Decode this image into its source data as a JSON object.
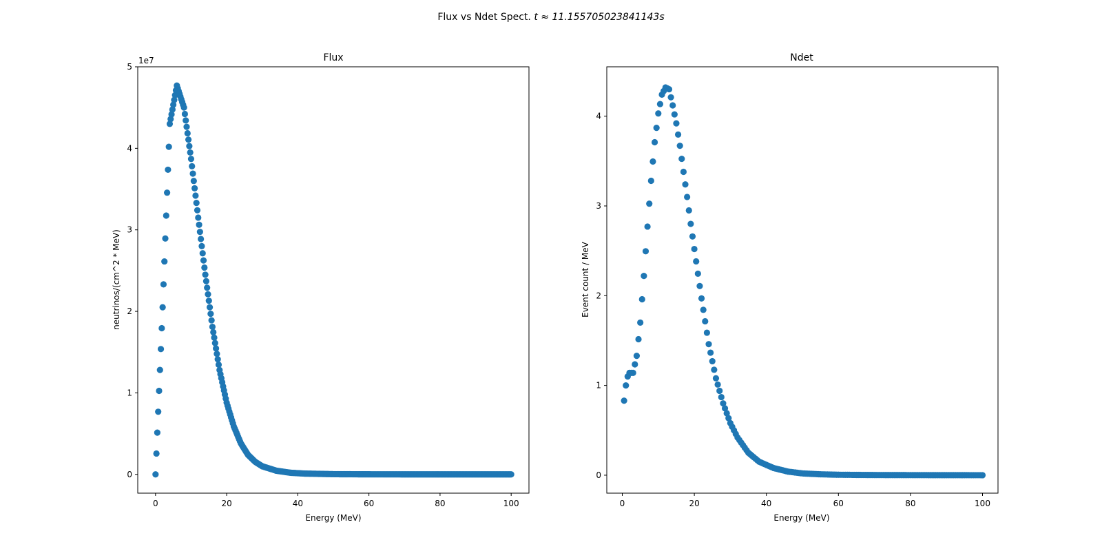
{
  "figure": {
    "suptitle_prefix": "Flux vs Ndet Spect. ",
    "suptitle_time": "t ≈ 11.155705023841143s",
    "marker_color": "#1f77b4"
  },
  "chart_data": [
    {
      "id": "flux",
      "type": "scatter",
      "title": "Flux",
      "xlabel": "Energy (MeV)",
      "ylabel": "neutrinos/(cm^2 * MeV)",
      "offset_label": "1e7",
      "xlim": [
        -5,
        105
      ],
      "ylim": [
        -2.3,
        50
      ],
      "xticks": [
        0,
        20,
        40,
        60,
        80,
        100
      ],
      "xtick_labels": [
        "0",
        "20",
        "40",
        "60",
        "80",
        "100"
      ],
      "yticks": [
        0,
        10,
        20,
        30,
        40,
        50
      ],
      "ytick_labels": [
        "0",
        "1",
        "2",
        "3",
        "4",
        "5"
      ],
      "grid": false,
      "color": "#1f77b4",
      "units_note": "y values in units of 1e7",
      "x": [
        0,
        2,
        4,
        6,
        8,
        10,
        12,
        14,
        16,
        18,
        20,
        22,
        24,
        26,
        28,
        30,
        34,
        38,
        42,
        50,
        60,
        70,
        80,
        90,
        100
      ],
      "y": [
        0,
        20.5,
        43.0,
        47.7,
        45.0,
        38.7,
        31.5,
        24.5,
        18.1,
        12.8,
        8.8,
        5.9,
        3.8,
        2.4,
        1.55,
        1.0,
        0.45,
        0.2,
        0.1,
        0.03,
        0.01,
        0.005,
        0.002,
        0.001,
        0
      ]
    },
    {
      "id": "ndet",
      "type": "scatter",
      "title": "Ndet",
      "xlabel": "Energy (MeV)",
      "ylabel": "Event count / MeV",
      "xlim": [
        -4.3,
        104.3
      ],
      "ylim": [
        -0.2,
        4.55
      ],
      "xticks": [
        0,
        20,
        40,
        60,
        80,
        100
      ],
      "xtick_labels": [
        "0",
        "20",
        "40",
        "60",
        "80",
        "100"
      ],
      "yticks": [
        0,
        1,
        2,
        3,
        4
      ],
      "ytick_labels": [
        "0",
        "1",
        "2",
        "3",
        "4"
      ],
      "grid": false,
      "color": "#1f77b4",
      "x": [
        0.5,
        1,
        1.5,
        2,
        3,
        4,
        5,
        6,
        7,
        8,
        9,
        10,
        11,
        12,
        13,
        14,
        15,
        16,
        17,
        18,
        19,
        20,
        22,
        24,
        26,
        28,
        30,
        32,
        35,
        38,
        42,
        46,
        50,
        55,
        60,
        70,
        80,
        90,
        100
      ],
      "y": [
        0.83,
        1.0,
        1.1,
        1.14,
        1.14,
        1.33,
        1.7,
        2.22,
        2.77,
        3.28,
        3.71,
        4.03,
        4.24,
        4.32,
        4.3,
        4.12,
        3.92,
        3.67,
        3.38,
        3.1,
        2.8,
        2.52,
        1.97,
        1.46,
        1.08,
        0.8,
        0.58,
        0.42,
        0.25,
        0.15,
        0.08,
        0.04,
        0.02,
        0.01,
        0.005,
        0.002,
        0.001,
        0.0005,
        0
      ]
    }
  ]
}
